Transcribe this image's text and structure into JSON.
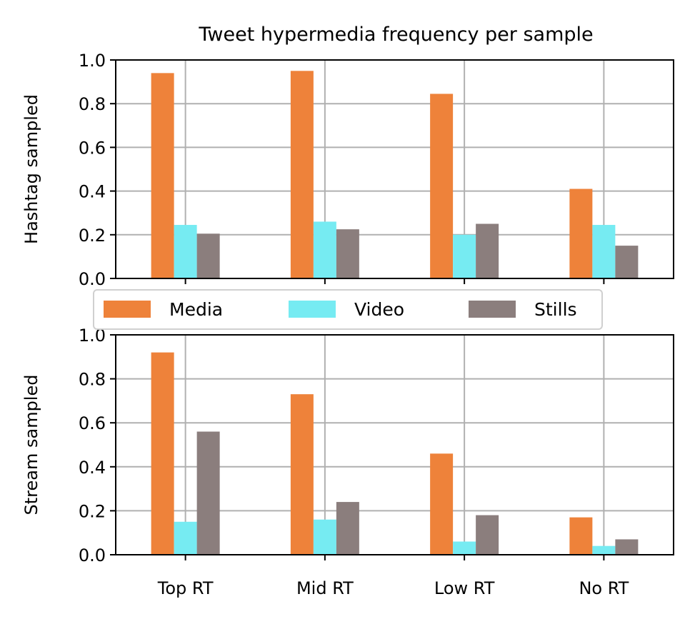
{
  "title": "Tweet hypermedia frequency per sample",
  "colors": {
    "Media": "#ee823a",
    "Video": "#76ebf2",
    "Stills": "#8b7e7d",
    "grid": "#b0b0b0"
  },
  "legend": {
    "placement": "between-panels",
    "entries": [
      "Media",
      "Video",
      "Stills"
    ]
  },
  "chart_data": [
    {
      "type": "bar",
      "title": "Tweet hypermedia frequency per sample",
      "ylabel": "Hashtag sampled",
      "xlabel": "",
      "categories": [
        "Top RT",
        "Mid RT",
        "Low RT",
        "No RT"
      ],
      "ylim": [
        0,
        1.0
      ],
      "yticks": [
        "0.0",
        "0.2",
        "0.4",
        "0.6",
        "0.8",
        "1.0"
      ],
      "grid": true,
      "show_xticklabels": false,
      "series": [
        {
          "name": "Media",
          "values": [
            0.94,
            0.95,
            0.845,
            0.41
          ]
        },
        {
          "name": "Video",
          "values": [
            0.245,
            0.26,
            0.2,
            0.245
          ]
        },
        {
          "name": "Stills",
          "values": [
            0.205,
            0.225,
            0.25,
            0.15
          ]
        }
      ]
    },
    {
      "type": "bar",
      "title": "",
      "ylabel": "Stream sampled",
      "xlabel": "",
      "categories": [
        "Top RT",
        "Mid RT",
        "Low RT",
        "No RT"
      ],
      "ylim": [
        0,
        1.0
      ],
      "yticks": [
        "0.0",
        "0.2",
        "0.4",
        "0.6",
        "0.8",
        "1.0"
      ],
      "grid": true,
      "show_xticklabels": true,
      "series": [
        {
          "name": "Media",
          "values": [
            0.92,
            0.73,
            0.46,
            0.17
          ]
        },
        {
          "name": "Video",
          "values": [
            0.15,
            0.16,
            0.06,
            0.04
          ]
        },
        {
          "name": "Stills",
          "values": [
            0.56,
            0.24,
            0.18,
            0.07
          ]
        }
      ]
    }
  ]
}
